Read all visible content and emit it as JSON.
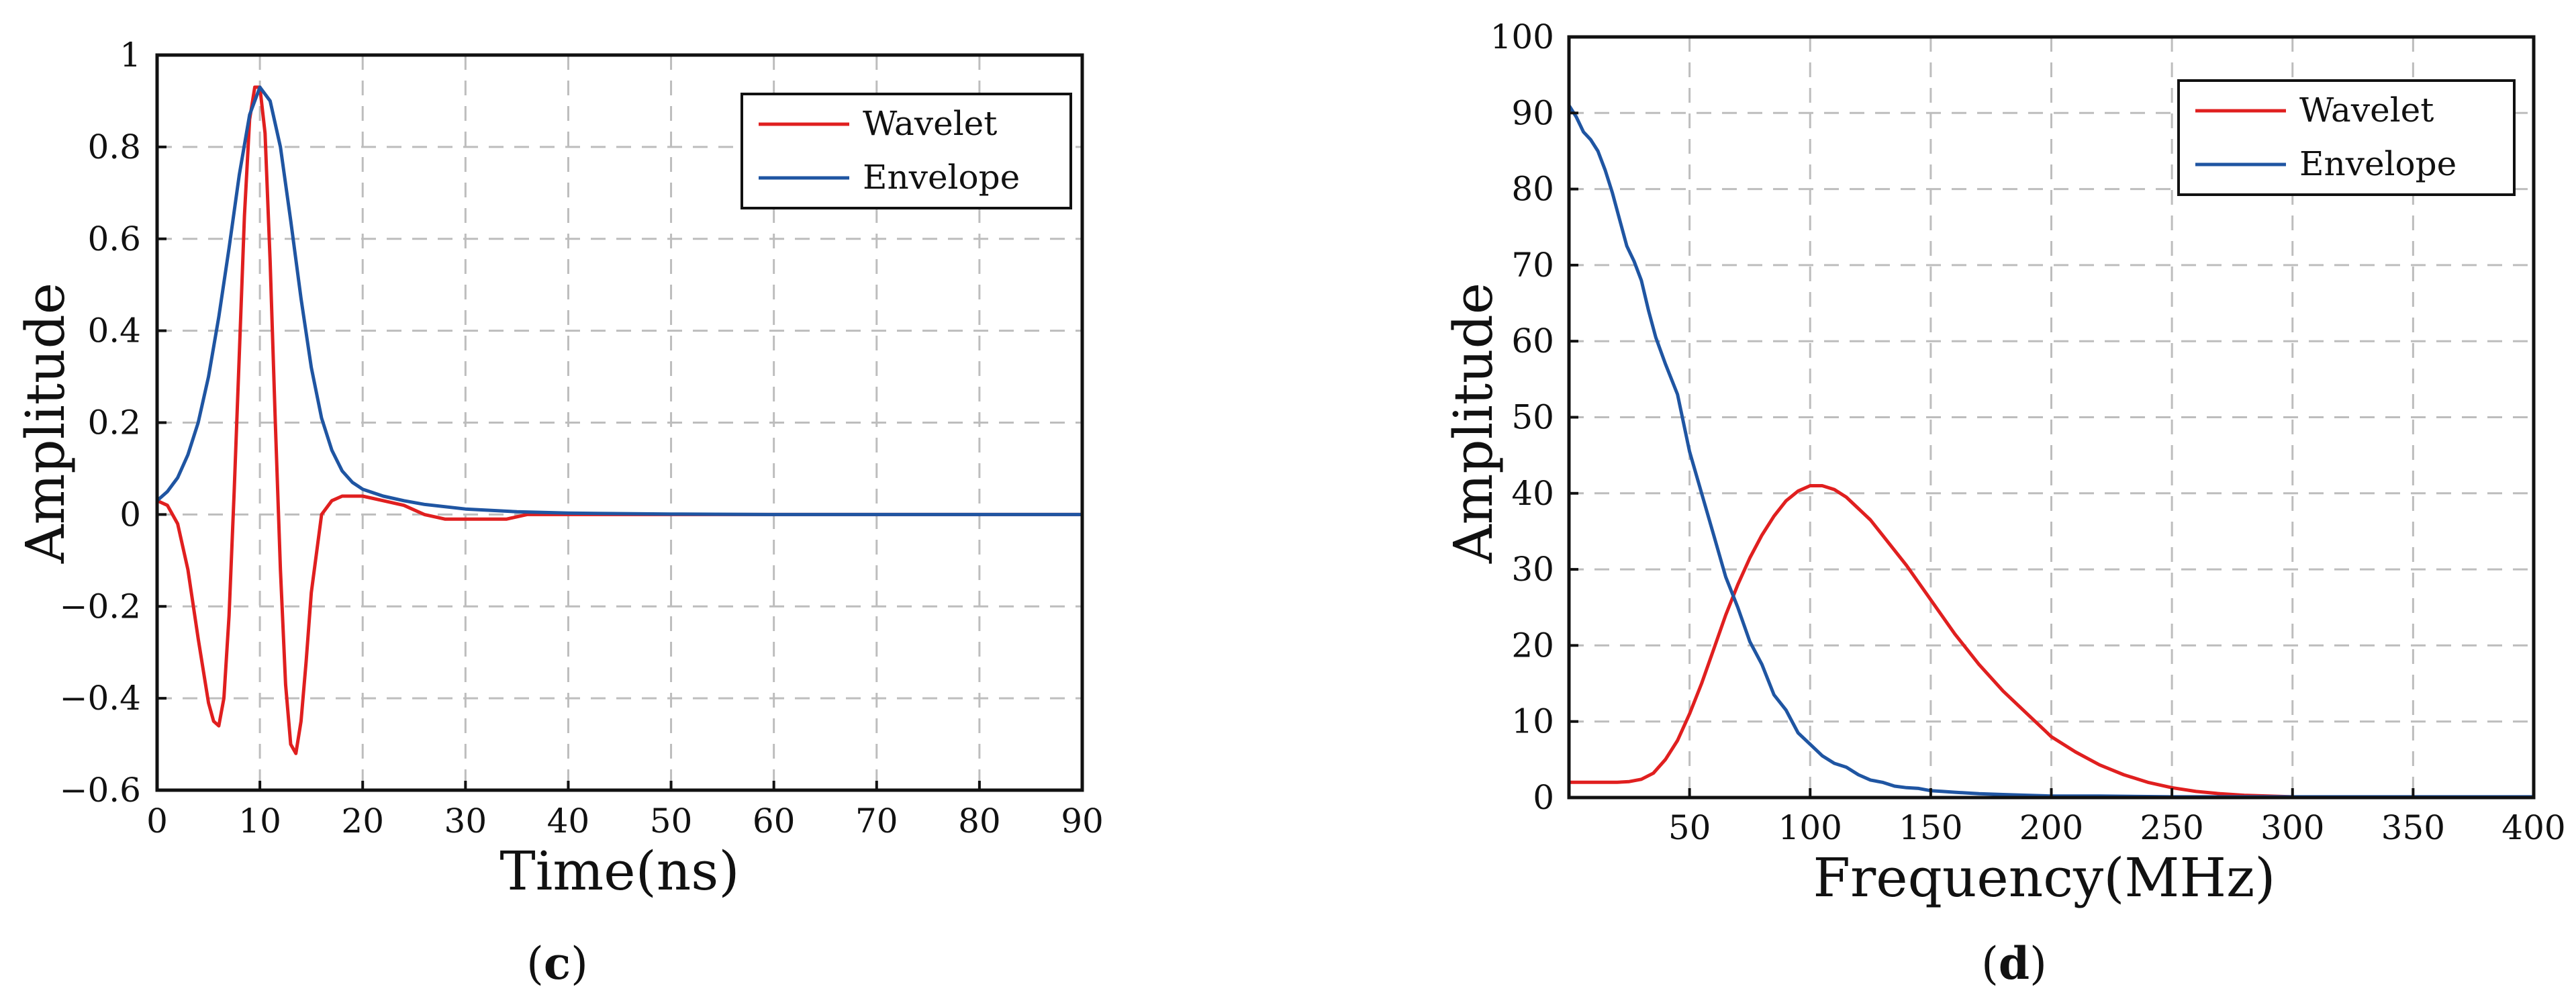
{
  "colors": {
    "wavelet": "#e01f1f",
    "envelope": "#1f55a2",
    "grid": "#bdbdbd",
    "axis": "#111111"
  },
  "panel_labels": [
    "c",
    "d"
  ],
  "chart_data": [
    {
      "type": "line",
      "panel": "c",
      "xlabel": "Time(ns)",
      "ylabel": "Amplitude",
      "xlim": [
        0,
        90
      ],
      "ylim": [
        -0.6,
        1
      ],
      "xticks": [
        0,
        10,
        20,
        30,
        40,
        50,
        60,
        70,
        80,
        90
      ],
      "yticks": [
        1,
        0.8,
        0.6,
        0.4,
        0.2,
        0,
        -0.2,
        -0.4,
        -0.6
      ],
      "xtick_labels": [
        "0",
        "10",
        "20",
        "30",
        "40",
        "50",
        "60",
        "70",
        "80",
        "90"
      ],
      "ytick_labels": [
        "1",
        "0.8",
        "0.6",
        "0.4",
        "0.2",
        "0",
        "−0.2",
        "−0.4",
        "−0.6"
      ],
      "grid": true,
      "legend": "top-right",
      "series": [
        {
          "name": "Wavelet",
          "color_key": "wavelet",
          "x": [
            0,
            1,
            2,
            3,
            4,
            5,
            5.5,
            6,
            6.5,
            7,
            7.5,
            8,
            8.5,
            9,
            9.5,
            10,
            10.5,
            11,
            11.5,
            12,
            12.5,
            13,
            13.5,
            14,
            14.5,
            15,
            16,
            17,
            18,
            19,
            20,
            22,
            24,
            26,
            28,
            30,
            32,
            34,
            36,
            38,
            40,
            45,
            50,
            55,
            60,
            70,
            80,
            90
          ],
          "y": [
            0.03,
            0.02,
            -0.02,
            -0.12,
            -0.27,
            -0.41,
            -0.45,
            -0.46,
            -0.4,
            -0.22,
            0.05,
            0.35,
            0.65,
            0.86,
            0.93,
            0.93,
            0.83,
            0.55,
            0.2,
            -0.12,
            -0.37,
            -0.5,
            -0.52,
            -0.45,
            -0.32,
            -0.17,
            0.0,
            0.03,
            0.04,
            0.04,
            0.04,
            0.03,
            0.02,
            0.0,
            -0.01,
            -0.01,
            -0.01,
            -0.01,
            0.0,
            0.0,
            0.0,
            0.0,
            0.0,
            0.0,
            0.0,
            0.0,
            0.0,
            0.0
          ]
        },
        {
          "name": "Envelope",
          "color_key": "envelope",
          "x": [
            0,
            1,
            2,
            3,
            4,
            5,
            6,
            7,
            8,
            9,
            10,
            11,
            12,
            13,
            14,
            15,
            16,
            17,
            18,
            19,
            20,
            22,
            24,
            26,
            30,
            35,
            40,
            50,
            60,
            70,
            80,
            90
          ],
          "y": [
            0.03,
            0.05,
            0.08,
            0.13,
            0.2,
            0.3,
            0.43,
            0.58,
            0.74,
            0.87,
            0.93,
            0.9,
            0.8,
            0.64,
            0.47,
            0.32,
            0.21,
            0.14,
            0.095,
            0.07,
            0.055,
            0.04,
            0.03,
            0.022,
            0.012,
            0.006,
            0.003,
            0.001,
            0.0,
            0.0,
            0.0,
            0.0
          ]
        }
      ]
    },
    {
      "type": "line",
      "panel": "d",
      "xlabel": "Frequency(MHz)",
      "ylabel": "Amplitude",
      "xlim": [
        0,
        400
      ],
      "ylim": [
        0,
        100
      ],
      "xticks": [
        50,
        100,
        150,
        200,
        250,
        300,
        350,
        400
      ],
      "yticks": [
        100,
        90,
        80,
        70,
        60,
        50,
        40,
        30,
        20,
        10,
        0
      ],
      "xtick_labels": [
        "50",
        "100",
        "150",
        "200",
        "250",
        "300",
        "350",
        "400"
      ],
      "ytick_labels": [
        "100",
        "90",
        "80",
        "70",
        "60",
        "50",
        "40",
        "30",
        "20",
        "10",
        "0"
      ],
      "grid": true,
      "legend": "top-right",
      "series": [
        {
          "name": "Wavelet",
          "color_key": "wavelet",
          "x": [
            0,
            10,
            20,
            25,
            30,
            35,
            40,
            45,
            50,
            55,
            60,
            65,
            70,
            75,
            80,
            85,
            90,
            95,
            100,
            105,
            110,
            115,
            120,
            125,
            130,
            140,
            150,
            160,
            170,
            180,
            190,
            200,
            210,
            220,
            230,
            240,
            250,
            260,
            270,
            280,
            300,
            350,
            400
          ],
          "y": [
            2,
            2,
            2,
            2.1,
            2.4,
            3.2,
            5,
            7.5,
            11,
            15,
            19.5,
            24,
            28,
            31.5,
            34.5,
            37,
            39,
            40.3,
            41,
            41,
            40.5,
            39.5,
            38,
            36.5,
            34.5,
            30.5,
            26,
            21.5,
            17.5,
            14,
            11,
            8,
            6,
            4.3,
            3,
            2,
            1.3,
            0.8,
            0.5,
            0.3,
            0.1,
            0,
            0
          ]
        },
        {
          "name": "Envelope",
          "color_key": "envelope",
          "x": [
            0,
            3,
            6,
            9,
            12,
            15,
            18,
            21,
            24,
            27,
            30,
            33,
            36,
            40,
            45,
            50,
            55,
            60,
            65,
            70,
            75,
            80,
            85,
            90,
            95,
            100,
            105,
            110,
            115,
            120,
            125,
            130,
            135,
            140,
            145,
            150,
            155,
            160,
            170,
            180,
            190,
            200,
            220,
            250,
            300,
            350,
            400
          ],
          "y": [
            91,
            89.5,
            87.5,
            86.5,
            85,
            82.5,
            79.5,
            76,
            72.5,
            70.5,
            68,
            64,
            60.5,
            57,
            53,
            45.5,
            40,
            34.5,
            29,
            25,
            20.5,
            17.5,
            13.5,
            11.5,
            8.5,
            7,
            5.5,
            4.5,
            4,
            3,
            2.3,
            2,
            1.5,
            1.3,
            1.2,
            0.9,
            0.8,
            0.7,
            0.5,
            0.4,
            0.3,
            0.2,
            0.2,
            0.1,
            0.1,
            0.1,
            0.1
          ]
        }
      ]
    }
  ]
}
